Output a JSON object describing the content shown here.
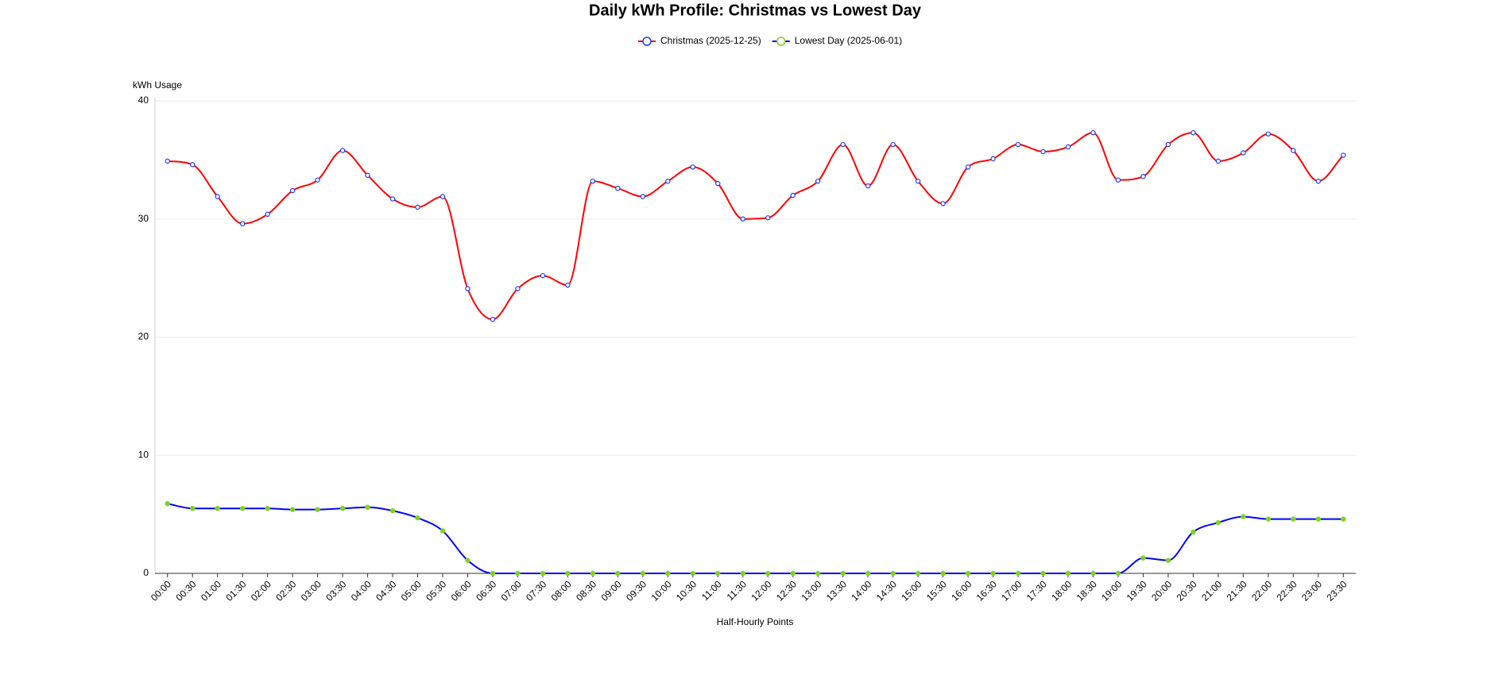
{
  "chart_data": {
    "type": "line",
    "title": "Daily kWh Profile: Christmas vs Lowest Day",
    "x_label": "Half-Hourly Points",
    "y_label": "kWh Usage",
    "categories": [
      "00:00",
      "00:30",
      "01:00",
      "01:30",
      "02:00",
      "02:30",
      "03:00",
      "03:30",
      "04:00",
      "04:30",
      "05:00",
      "05:30",
      "06:00",
      "06:30",
      "07:00",
      "07:30",
      "08:00",
      "08:30",
      "09:00",
      "09:30",
      "10:00",
      "10:30",
      "11:00",
      "11:30",
      "12:00",
      "12:30",
      "13:00",
      "13:30",
      "14:00",
      "14:30",
      "15:00",
      "15:30",
      "16:00",
      "16:30",
      "17:00",
      "17:30",
      "18:00",
      "18:30",
      "19:00",
      "19:30",
      "20:00",
      "20:30",
      "21:00",
      "21:30",
      "22:00",
      "22:30",
      "23:00",
      "23:30"
    ],
    "series": [
      {
        "name": "Christmas (2025-12-25)",
        "color": "#ff0000",
        "point_color": "#1e3cff",
        "values": [
          34.9,
          34.6,
          31.9,
          29.6,
          30.4,
          32.4,
          33.3,
          35.8,
          33.7,
          31.7,
          31.0,
          31.9,
          24.1,
          21.5,
          24.1,
          25.2,
          24.4,
          33.2,
          32.6,
          31.9,
          33.2,
          34.4,
          33.0,
          30.0,
          30.1,
          32.0,
          33.2,
          36.3,
          32.8,
          36.3,
          33.2,
          31.3,
          34.4,
          35.1,
          36.3,
          35.7,
          36.1,
          37.3,
          33.3,
          33.6,
          36.3,
          37.3,
          34.9,
          35.6,
          37.2,
          35.8,
          33.2,
          35.4
        ]
      },
      {
        "name": "Lowest Day (2025-06-01)",
        "color": "#0000ff",
        "point_color": "#7ed321",
        "values": [
          5.9,
          5.5,
          5.5,
          5.5,
          5.5,
          5.4,
          5.4,
          5.5,
          5.6,
          5.3,
          4.7,
          3.6,
          1.1,
          0,
          0,
          0,
          0,
          0,
          0,
          0,
          0,
          0,
          0,
          0,
          0,
          0,
          0,
          0,
          0,
          0,
          0,
          0,
          0,
          0,
          0,
          0,
          0,
          0,
          0,
          1.3,
          1.1,
          3.5,
          4.3,
          4.8,
          4.6,
          4.6,
          4.6,
          4.6
        ]
      }
    ],
    "ylim": [
      0,
      40
    ],
    "yticks": [
      0,
      10,
      20,
      30,
      40
    ],
    "grid": true,
    "legend": "top"
  }
}
